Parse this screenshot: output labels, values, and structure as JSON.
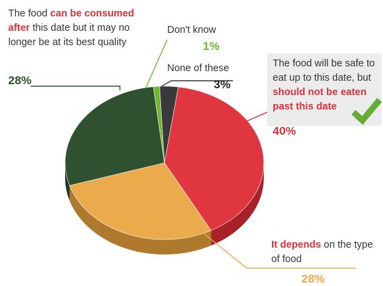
{
  "chart_data": {
    "type": "pie",
    "title": "",
    "slices": [
      {
        "id": "safe",
        "value": 40,
        "color": "#e0363f",
        "side": "#a82028"
      },
      {
        "id": "depends",
        "value": 28,
        "color": "#ebaa4b",
        "side": "#b07a2e"
      },
      {
        "id": "consumed-after",
        "value": 28,
        "color": "#2f5130",
        "side": "#1f3820"
      },
      {
        "id": "dont-know",
        "value": 1,
        "color": "#6fb830",
        "side": "#4e8a1f"
      },
      {
        "id": "none",
        "value": 3,
        "color": "#3a3a3a",
        "side": "#222222"
      }
    ]
  },
  "labels": {
    "consumed_after": {
      "pre": "The food ",
      "highlight1": "can be consumed",
      "highlight2": "after",
      "rest": " this date but it may no longer be at its best quality",
      "pct": "28%",
      "pct_color": "#2f5130"
    },
    "dont_know": {
      "text": "Don't know",
      "pct": "1%",
      "pct_color": "#6fb830"
    },
    "none": {
      "text": "None of these",
      "pct": "3%",
      "pct_color": "#222222"
    },
    "safe": {
      "pre": "The food will be safe to eat up to this date, but ",
      "highlight": "should not be eaten past this date",
      "pct": "40%",
      "pct_color": "#d7323b"
    },
    "depends": {
      "highlight": "It depends",
      "rest": " on the type of food",
      "pct": "28%",
      "pct_color": "#ebaa4b"
    }
  },
  "icons": {
    "check": "check-icon"
  }
}
